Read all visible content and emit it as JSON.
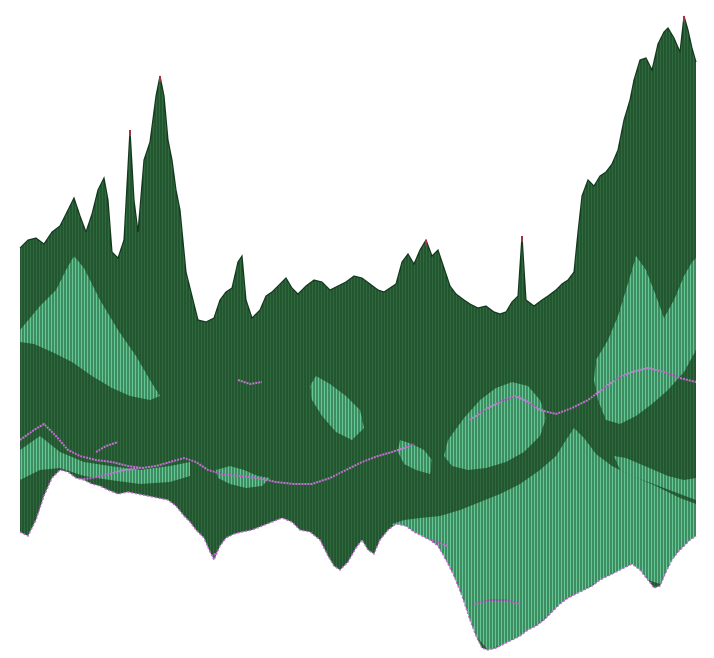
{
  "visible_text": [],
  "colors": {
    "background": "#ffffff",
    "dark_fill": "#2f6a3c",
    "light_fill": "#62c995",
    "stripe_line": "#12381e",
    "highlight": "#c86bd6",
    "peak_tick": "#a23141"
  }
}
